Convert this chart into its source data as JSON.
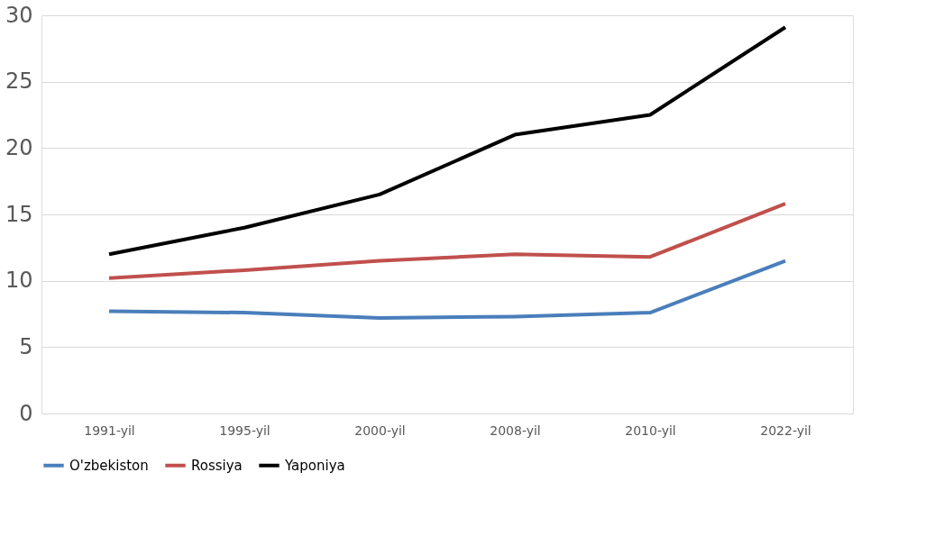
{
  "chart_data": {
    "type": "line",
    "categories": [
      "1991-yil",
      "1995-yil",
      "2000-yil",
      "2008-yil",
      "2010-yil",
      "2022-yil"
    ],
    "series": [
      {
        "name": "O'zbekiston",
        "color": "#4a7ebb",
        "values": [
          7.7,
          7.6,
          7.2,
          7.3,
          7.6,
          11.5
        ]
      },
      {
        "name": "Rossiya",
        "color": "#c0504d",
        "values": [
          10.2,
          10.8,
          11.5,
          12,
          11.8,
          15.8
        ]
      },
      {
        "name": "Yaponiya",
        "color": "#000000",
        "values": [
          12,
          14,
          16.5,
          21,
          22.5,
          29.1
        ]
      }
    ],
    "ylim": [
      0,
      30
    ],
    "yticks": [
      0,
      5,
      10,
      15,
      20,
      25,
      30
    ],
    "grid": "y",
    "legend": "bottom",
    "marker": "none",
    "line_style": "solid"
  }
}
